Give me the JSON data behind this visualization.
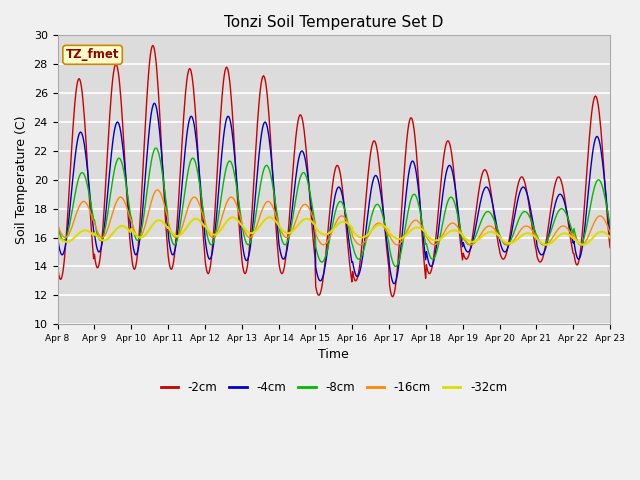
{
  "title": "Tonzi Soil Temperature Set D",
  "xlabel": "Time",
  "ylabel": "Soil Temperature (C)",
  "ylim": [
    10,
    30
  ],
  "xlim": [
    0,
    15
  ],
  "fig_width": 6.4,
  "fig_height": 4.8,
  "fig_dpi": 100,
  "background_color": "#dcdcdc",
  "fig_background": "#f0f0f0",
  "grid_color": "#ffffff",
  "series_colors": {
    "-2cm": "#cc0000",
    "-4cm": "#0000cc",
    "-8cm": "#00bb00",
    "-16cm": "#ff8800",
    "-32cm": "#dddd00"
  },
  "legend_label": "TZ_fmet",
  "xtick_labels": [
    "Apr 8",
    "Apr 9",
    "Apr 10",
    "Apr 11",
    "Apr 12",
    "Apr 13",
    "Apr 14",
    "Apr 15",
    "Apr 16",
    "Apr 17",
    "Apr 18",
    "Apr 19",
    "Apr 20",
    "Apr 21",
    "Apr 22",
    "Apr 23"
  ],
  "yticks": [
    10,
    12,
    14,
    16,
    18,
    20,
    22,
    24,
    26,
    28,
    30
  ],
  "peaks_2cm": [
    27.0,
    28.0,
    29.3,
    27.7,
    27.8,
    27.2,
    24.5,
    21.0,
    22.7,
    24.3,
    22.7,
    20.7,
    20.2,
    20.2,
    25.8
  ],
  "troughs_2cm": [
    13.1,
    13.9,
    13.8,
    13.8,
    13.5,
    13.5,
    13.5,
    12.0,
    13.0,
    11.9,
    13.5,
    14.5,
    14.5,
    14.3,
    14.1
  ],
  "peaks_4cm": [
    23.3,
    24.0,
    25.3,
    24.4,
    24.4,
    24.0,
    22.0,
    19.5,
    20.3,
    21.3,
    21.0,
    19.5,
    19.5,
    19.0,
    23.0
  ],
  "troughs_4cm": [
    14.8,
    15.0,
    14.8,
    14.8,
    14.5,
    14.4,
    14.5,
    13.0,
    13.3,
    12.8,
    14.0,
    15.0,
    15.0,
    14.8,
    14.5
  ],
  "peaks_8cm": [
    20.5,
    21.5,
    22.2,
    21.5,
    21.3,
    21.0,
    20.5,
    18.5,
    18.3,
    19.0,
    18.8,
    17.8,
    17.8,
    18.0,
    20.0
  ],
  "troughs_8cm": [
    15.8,
    15.8,
    15.8,
    15.5,
    15.5,
    15.5,
    15.5,
    14.3,
    14.5,
    14.0,
    14.5,
    15.5,
    15.5,
    15.5,
    15.5
  ],
  "peaks_16cm": [
    18.5,
    18.8,
    19.3,
    18.8,
    18.8,
    18.5,
    18.3,
    17.5,
    17.0,
    17.2,
    17.0,
    16.8,
    16.8,
    16.8,
    17.5
  ],
  "troughs_16cm": [
    16.0,
    16.0,
    16.0,
    16.0,
    16.0,
    16.0,
    16.0,
    15.5,
    15.5,
    15.5,
    15.5,
    15.5,
    15.5,
    15.5,
    15.5
  ],
  "peaks_32cm": [
    16.5,
    16.8,
    17.2,
    17.3,
    17.4,
    17.4,
    17.3,
    17.1,
    16.9,
    16.7,
    16.5,
    16.4,
    16.3,
    16.3,
    16.4
  ],
  "troughs_32cm": [
    15.7,
    15.8,
    16.0,
    16.1,
    16.2,
    16.3,
    16.3,
    16.2,
    16.0,
    15.9,
    15.8,
    15.7,
    15.6,
    15.5,
    15.5
  ],
  "peak_hours": [
    14,
    15,
    16,
    17,
    18
  ],
  "trough_hours": [
    4,
    5,
    6,
    7,
    9
  ],
  "n_days": 15,
  "pts_per_day": 48
}
